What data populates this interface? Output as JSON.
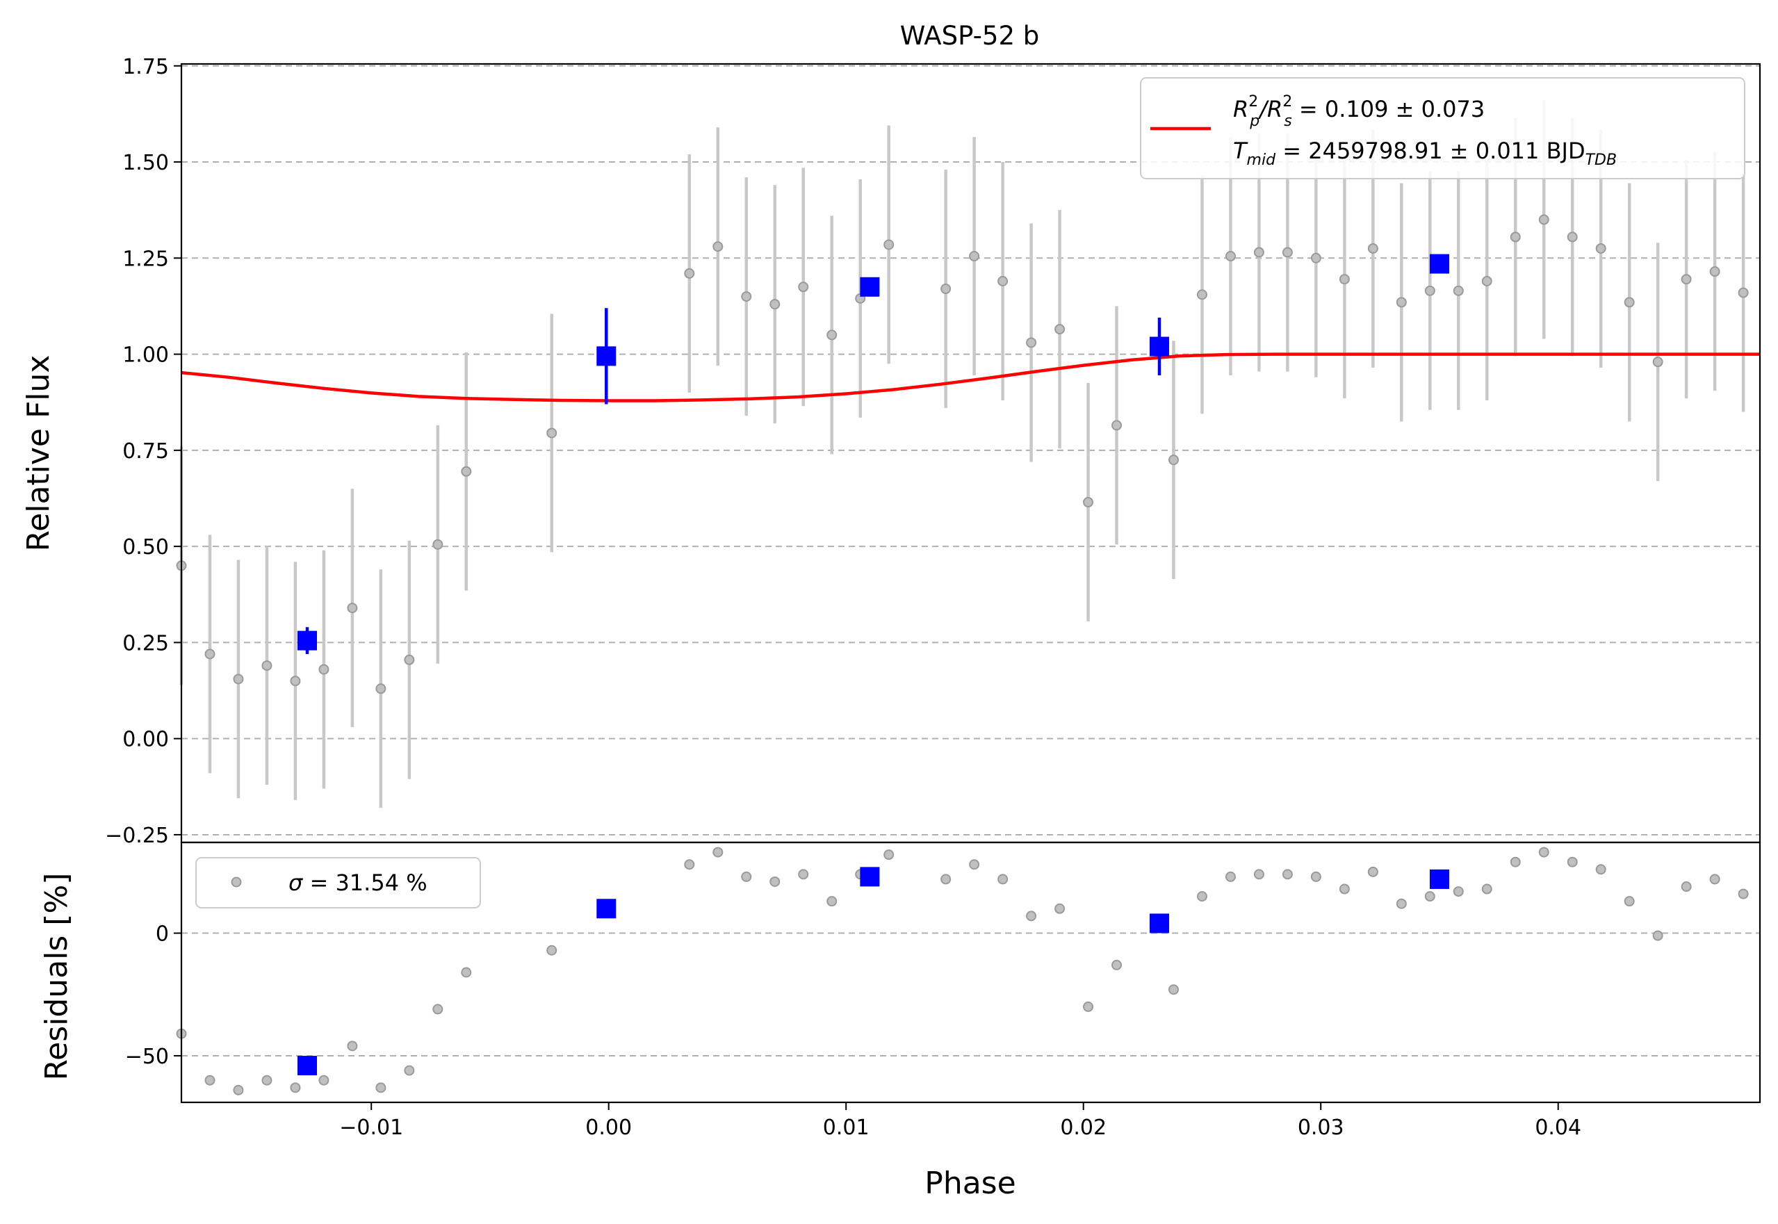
{
  "colors": {
    "raw_points": "#9a9a9a",
    "raw_errorbars": "#c8c8c8",
    "binned": "#0000ff",
    "model": "#ff0000",
    "grid": "#b0b0b0"
  },
  "chart_data": [
    {
      "type": "scatter",
      "title": "WASP-52 b",
      "xlabel": "",
      "ylabel": "Relative Flux",
      "xlim": [
        -0.018,
        0.0485
      ],
      "ylim": [
        -0.27,
        1.755
      ],
      "yticks": [
        -0.25,
        0.0,
        0.25,
        0.5,
        0.75,
        1.0,
        1.25,
        1.5,
        1.75
      ],
      "ytick_labels": [
        "−0.25",
        "0.00",
        "0.25",
        "0.50",
        "0.75",
        "1.00",
        "1.25",
        "1.50",
        "1.75"
      ],
      "grid": "horizontal dashed",
      "legend": {
        "position": "top-right",
        "line1": {
          "main": "R",
          "sup1": "2",
          "sub1": "p",
          "mid": "/R",
          "sup2": "2",
          "sub2": "s",
          "rest": " = 0.109 ± 0.073"
        },
        "line2": {
          "main": "T",
          "sub": "mid",
          "rest": " = 2459798.91 ± 0.011 BJD",
          "sub2": "TDB"
        }
      },
      "series": [
        {
          "kind": "raw",
          "x": [
            -0.018,
            -0.0168,
            -0.0156,
            -0.0144,
            -0.0132,
            -0.012,
            -0.0108,
            -0.0096,
            -0.0084,
            -0.0072,
            -0.006,
            -0.0024,
            0.0034,
            0.0046,
            0.0058,
            0.007,
            0.0082,
            0.0094,
            0.0106,
            0.0118,
            0.0142,
            0.0154,
            0.0166,
            0.0178,
            0.019,
            0.0202,
            0.0214,
            0.0238,
            0.025,
            0.0262,
            0.0274,
            0.0286,
            0.0298,
            0.031,
            0.0322,
            0.0334,
            0.0346,
            0.0358,
            0.037,
            0.0382,
            0.0394,
            0.0406,
            0.0418,
            0.043,
            0.0442,
            0.0454,
            0.0466,
            0.0478
          ],
          "y": [
            0.45,
            0.22,
            0.155,
            0.19,
            0.15,
            0.18,
            0.34,
            0.13,
            0.205,
            0.505,
            0.695,
            0.795,
            1.21,
            1.28,
            1.15,
            1.13,
            1.175,
            1.05,
            1.145,
            1.285,
            1.17,
            1.255,
            1.19,
            1.03,
            1.065,
            0.615,
            0.815,
            0.725,
            1.155,
            1.255,
            1.265,
            1.265,
            1.25,
            1.195,
            1.275,
            1.135,
            1.165,
            1.165,
            1.19,
            1.305,
            1.35,
            1.305,
            1.275,
            1.135,
            0.98,
            1.195,
            1.215,
            1.16
          ],
          "yerr": [
            0.31,
            0.31,
            0.31,
            0.31,
            0.31,
            0.31,
            0.31,
            0.31,
            0.31,
            0.31,
            0.31,
            0.31,
            0.31,
            0.31,
            0.31,
            0.31,
            0.31,
            0.31,
            0.31,
            0.31,
            0.31,
            0.31,
            0.31,
            0.31,
            0.31,
            0.31,
            0.31,
            0.31,
            0.31,
            0.31,
            0.31,
            0.31,
            0.31,
            0.31,
            0.31,
            0.31,
            0.31,
            0.31,
            0.31,
            0.31,
            0.31,
            0.31,
            0.31,
            0.31,
            0.31,
            0.31,
            0.31,
            0.31
          ]
        },
        {
          "kind": "binned",
          "x": [
            -0.0127,
            -0.0001,
            0.011,
            0.0232,
            0.035
          ],
          "y": [
            0.255,
            0.995,
            1.175,
            1.02,
            1.235
          ],
          "yerr": [
            0.035,
            0.125,
            0.0,
            0.075,
            0.0
          ]
        },
        {
          "kind": "model",
          "x": [
            -0.018,
            -0.016,
            -0.014,
            -0.012,
            -0.01,
            -0.008,
            -0.006,
            -0.004,
            -0.002,
            0.0,
            0.002,
            0.004,
            0.006,
            0.008,
            0.01,
            0.012,
            0.014,
            0.016,
            0.018,
            0.02,
            0.022,
            0.024,
            0.026,
            0.028,
            0.03,
            0.035,
            0.04,
            0.0485
          ],
          "y": [
            0.952,
            0.94,
            0.925,
            0.911,
            0.899,
            0.89,
            0.885,
            0.882,
            0.88,
            0.879,
            0.879,
            0.881,
            0.884,
            0.889,
            0.897,
            0.908,
            0.922,
            0.938,
            0.955,
            0.971,
            0.985,
            0.995,
            0.999,
            1.0,
            1.0,
            1.0,
            1.0,
            1.0
          ]
        }
      ]
    },
    {
      "type": "scatter",
      "title": "",
      "xlabel": "Phase",
      "ylabel": "Residuals [%]",
      "xlim": [
        -0.018,
        0.0485
      ],
      "ylim": [
        -69,
        37
      ],
      "xticks": [
        -0.01,
        0.0,
        0.01,
        0.02,
        0.03,
        0.04
      ],
      "xtick_labels": [
        "−0.01",
        "0.00",
        "0.01",
        "0.02",
        "0.03",
        "0.04"
      ],
      "yticks": [
        -50,
        0
      ],
      "ytick_labels": [
        "−50",
        "0"
      ],
      "grid": "horizontal dashed",
      "legend": {
        "position": "top-left",
        "label_symbol": "σ",
        "label_rest": " = 31.54 %"
      },
      "series": [
        {
          "kind": "raw",
          "x": [
            -0.018,
            -0.0168,
            -0.0156,
            -0.0144,
            -0.0132,
            -0.012,
            -0.0108,
            -0.0096,
            -0.0084,
            -0.0072,
            -0.006,
            -0.0024,
            0.0034,
            0.0046,
            0.0058,
            0.007,
            0.0082,
            0.0094,
            0.0106,
            0.0118,
            0.0142,
            0.0154,
            0.0166,
            0.0178,
            0.019,
            0.0202,
            0.0214,
            0.0238,
            0.025,
            0.0262,
            0.0274,
            0.0286,
            0.0298,
            0.031,
            0.0322,
            0.0334,
            0.0346,
            0.0358,
            0.037,
            0.0382,
            0.0394,
            0.0406,
            0.0418,
            0.043,
            0.0442,
            0.0454,
            0.0466,
            0.0478
          ],
          "y": [
            -41,
            -60,
            -64,
            -60,
            -63,
            -60,
            -46,
            -63,
            -56,
            -31,
            -16,
            -7,
            28,
            33,
            23,
            21,
            24,
            13,
            24,
            32,
            22,
            28,
            22,
            7,
            10,
            -30,
            -13,
            -23,
            15,
            23,
            24,
            24,
            23,
            18,
            25,
            12,
            15,
            17,
            18,
            29,
            33,
            29,
            26,
            13,
            -1,
            19,
            22,
            16
          ]
        },
        {
          "kind": "binned",
          "x": [
            -0.0127,
            -0.0001,
            0.011,
            0.0232,
            0.035
          ],
          "y": [
            -54,
            10,
            23,
            4,
            22
          ]
        }
      ]
    }
  ]
}
